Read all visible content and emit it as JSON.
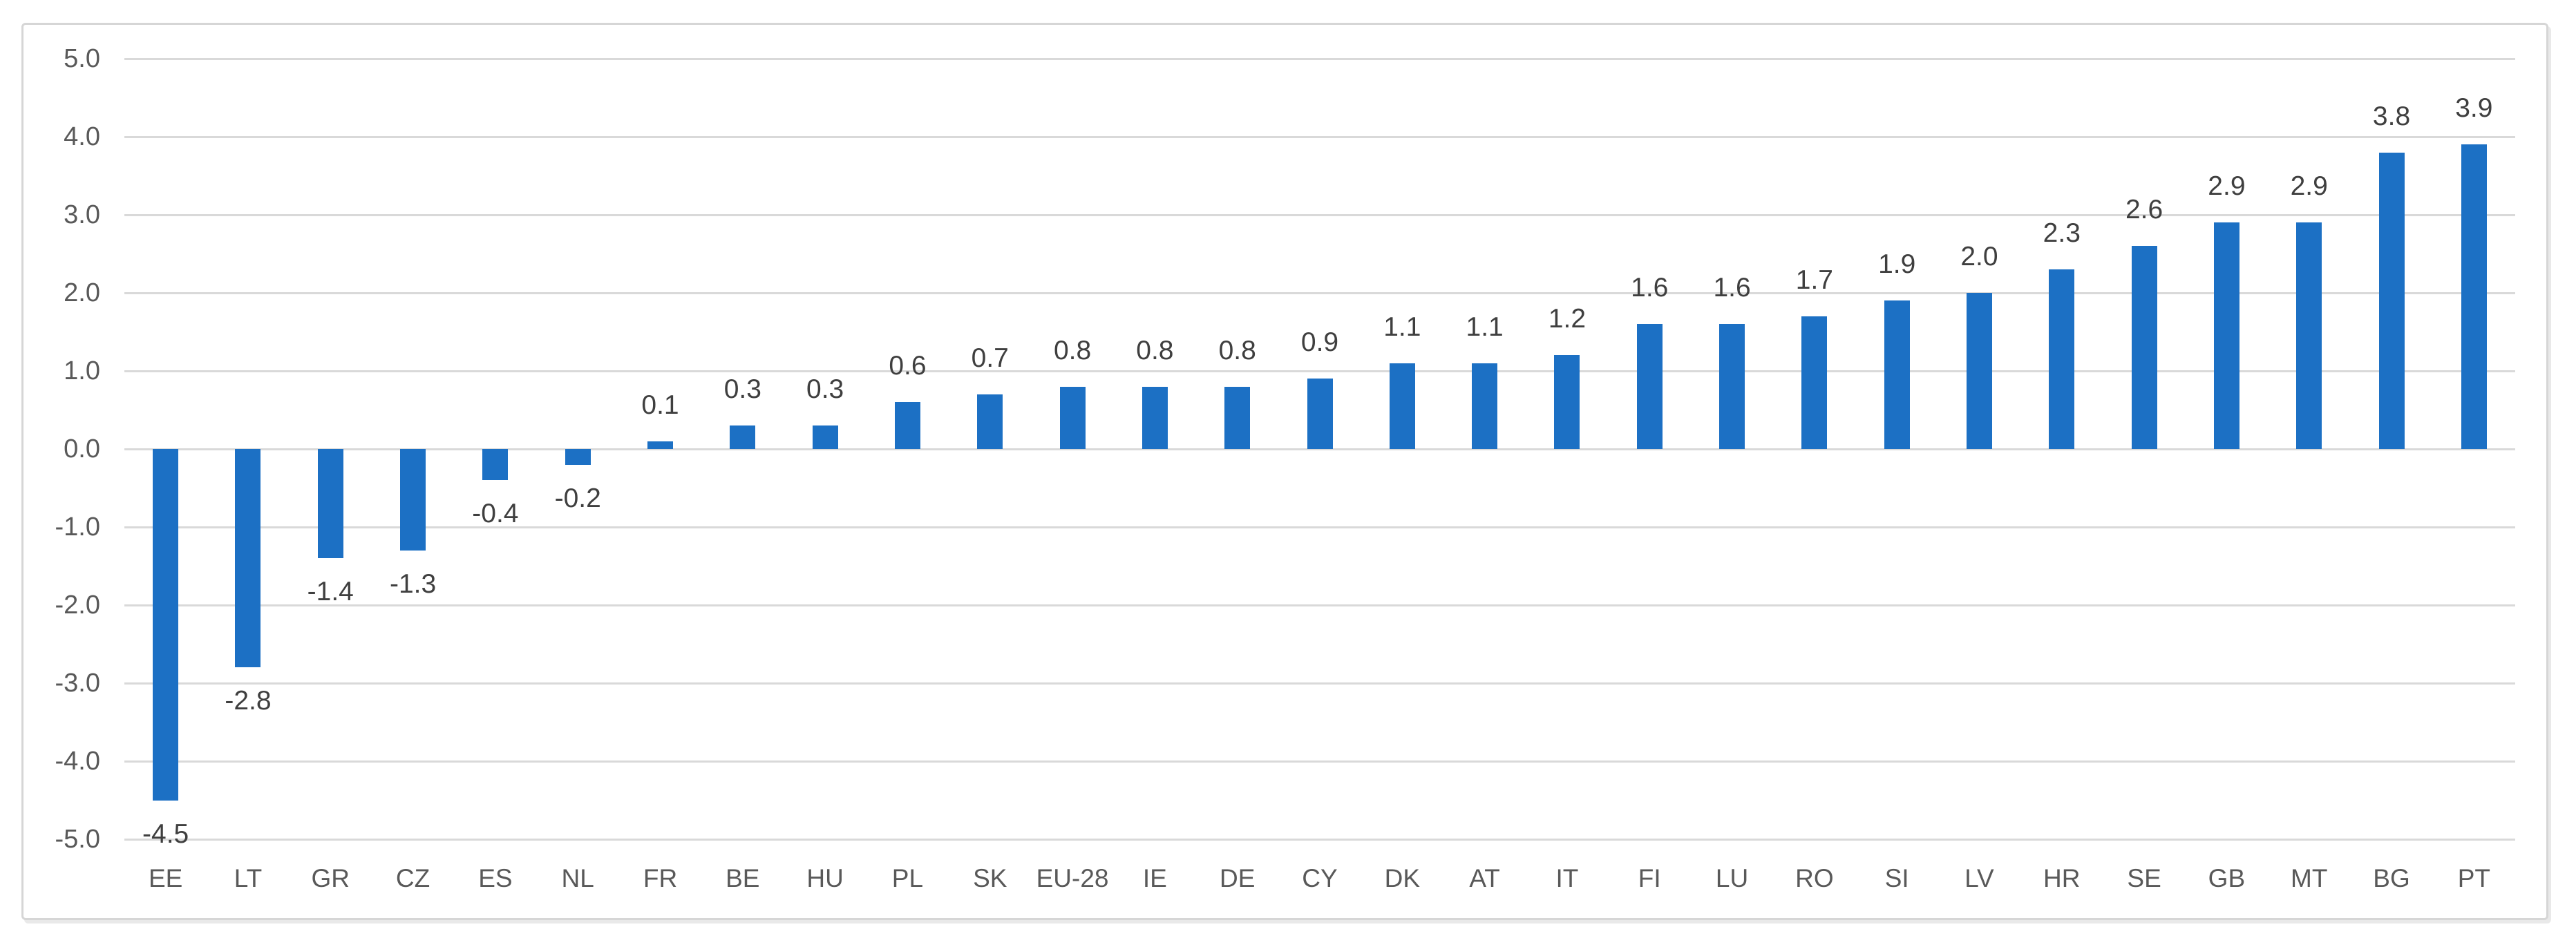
{
  "chart_data": {
    "type": "bar",
    "title": "",
    "xlabel": "",
    "ylabel": "",
    "categories": [
      "EE",
      "LT",
      "GR",
      "CZ",
      "ES",
      "NL",
      "FR",
      "BE",
      "HU",
      "PL",
      "SK",
      "EU-28",
      "IE",
      "DE",
      "CY",
      "DK",
      "AT",
      "IT",
      "FI",
      "LU",
      "RO",
      "SI",
      "LV",
      "HR",
      "SE",
      "GB",
      "MT",
      "BG",
      "PT"
    ],
    "values": [
      -4.5,
      -2.8,
      -1.4,
      -1.3,
      -0.4,
      -0.2,
      0.1,
      0.3,
      0.3,
      0.6,
      0.7,
      0.8,
      0.8,
      0.8,
      0.9,
      1.1,
      1.1,
      1.2,
      1.6,
      1.6,
      1.7,
      1.9,
      2.0,
      2.3,
      2.6,
      2.9,
      2.9,
      3.8,
      3.9
    ],
    "data_labels_visible": true,
    "ylim": [
      -5.0,
      5.0
    ],
    "ytick_labels": [
      "5.0",
      "4.0",
      "3.0",
      "2.0",
      "1.0",
      "0.0",
      "-1.0",
      "-2.0",
      "-3.0",
      "-4.0",
      "-5.0"
    ],
    "grid": true,
    "legend": "none",
    "colors": {
      "bar": "#1C70C4",
      "gridline": "#d9d9d9",
      "axis_label": "#595959",
      "data_label": "#3f3f3f",
      "frame_border": "#d6d6d6",
      "background": "#ffffff"
    }
  }
}
